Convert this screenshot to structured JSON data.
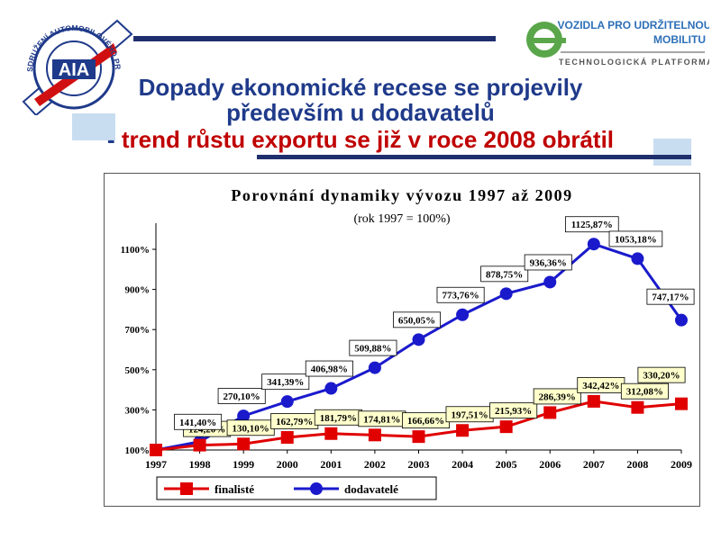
{
  "header": {
    "title_line1": "Dopady ekonomické recese se projevily",
    "title_line2": "především u dodavatelů",
    "title_line3_dash": "- ",
    "title_line3": "trend růstu exportu se již v roce 2008 obrátil"
  },
  "logos": {
    "aia": {
      "abbr": "AIA",
      "ring_text": "SDRUŽENÍ AUTOMOBILOVÉHO PRŮMYSLU"
    },
    "platform": {
      "line1": "VOZIDLA PRO UDRŽITELNOU",
      "line2": "MOBILITU",
      "line3": "TECHNOLOGICKÁ PLATFORMA"
    }
  },
  "colors": {
    "title_blue": "#1f3a8a",
    "title_red": "#c00000",
    "finaliste": "#e00000",
    "dodavatele": "#1a1acc",
    "label_bg": "#ffffcc",
    "deco_light": "#c9ddf0",
    "deco_dark": "#1f2f6e"
  },
  "chart_data": {
    "type": "line",
    "title": "Porovnání dynamiky vývozu 1997 až 2009",
    "subtitle": "(rok 1997 = 100%)",
    "categories": [
      "1997",
      "1998",
      "1999",
      "2000",
      "2001",
      "2002",
      "2003",
      "2004",
      "2005",
      "2006",
      "2007",
      "2008",
      "2009"
    ],
    "y_ticks": [
      "100%",
      "300%",
      "500%",
      "700%",
      "900%",
      "1100%"
    ],
    "ylim": [
      100,
      1230
    ],
    "grid": false,
    "legend_position": "bottom-left",
    "series": [
      {
        "name": "finalisté",
        "marker": "square",
        "values": [
          100,
          124.2,
          130.1,
          162.79,
          181.79,
          174.81,
          166.66,
          197.51,
          215.93,
          286.39,
          342.42,
          312.08,
          330.2
        ],
        "labels": [
          "",
          "124,20%",
          "130,10%",
          "162,79%",
          "181,79%",
          "174,81%",
          "166,66%",
          "197,51%",
          "215,93%",
          "286,39%",
          "342,42%",
          "312,08%",
          "330,20%"
        ]
      },
      {
        "name": "dodavatelé",
        "marker": "circle",
        "values": [
          100,
          141.4,
          270.1,
          341.39,
          406.98,
          509.88,
          650.05,
          773.76,
          878.75,
          936.36,
          1125.87,
          1053.18,
          747.17
        ],
        "labels": [
          "",
          "141,40%",
          "270,10%",
          "341,39%",
          "406,98%",
          "509,88%",
          "650,05%",
          "773,76%",
          "878,75%",
          "936,36%",
          "1125,87%",
          "1053,18%",
          "747,17%"
        ]
      }
    ]
  }
}
